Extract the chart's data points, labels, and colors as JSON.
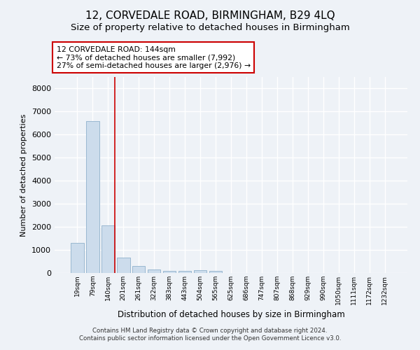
{
  "title": "12, CORVEDALE ROAD, BIRMINGHAM, B29 4LQ",
  "subtitle": "Size of property relative to detached houses in Birmingham",
  "xlabel": "Distribution of detached houses by size in Birmingham",
  "ylabel": "Number of detached properties",
  "footer_line1": "Contains HM Land Registry data © Crown copyright and database right 2024.",
  "footer_line2": "Contains public sector information licensed under the Open Government Licence v3.0.",
  "categories": [
    "19sqm",
    "79sqm",
    "140sqm",
    "201sqm",
    "261sqm",
    "322sqm",
    "383sqm",
    "443sqm",
    "504sqm",
    "565sqm",
    "625sqm",
    "686sqm",
    "747sqm",
    "807sqm",
    "868sqm",
    "929sqm",
    "990sqm",
    "1050sqm",
    "1111sqm",
    "1172sqm",
    "1232sqm"
  ],
  "bar_values": [
    1300,
    6580,
    2070,
    660,
    295,
    140,
    90,
    80,
    110,
    80,
    0,
    0,
    0,
    0,
    0,
    0,
    0,
    0,
    0,
    0,
    0
  ],
  "bar_color": "#ccdcec",
  "bar_edge_color": "#99b8d0",
  "highlight_index": 2,
  "highlight_line_color": "#cc0000",
  "annotation_text": "12 CORVEDALE ROAD: 144sqm\n← 73% of detached houses are smaller (7,992)\n27% of semi-detached houses are larger (2,976) →",
  "annotation_box_color": "white",
  "annotation_box_edge_color": "#cc0000",
  "ylim": [
    0,
    8500
  ],
  "yticks": [
    0,
    1000,
    2000,
    3000,
    4000,
    5000,
    6000,
    7000,
    8000
  ],
  "background_color": "#eef2f7",
  "grid_color": "white",
  "title_fontsize": 11,
  "subtitle_fontsize": 9.5
}
